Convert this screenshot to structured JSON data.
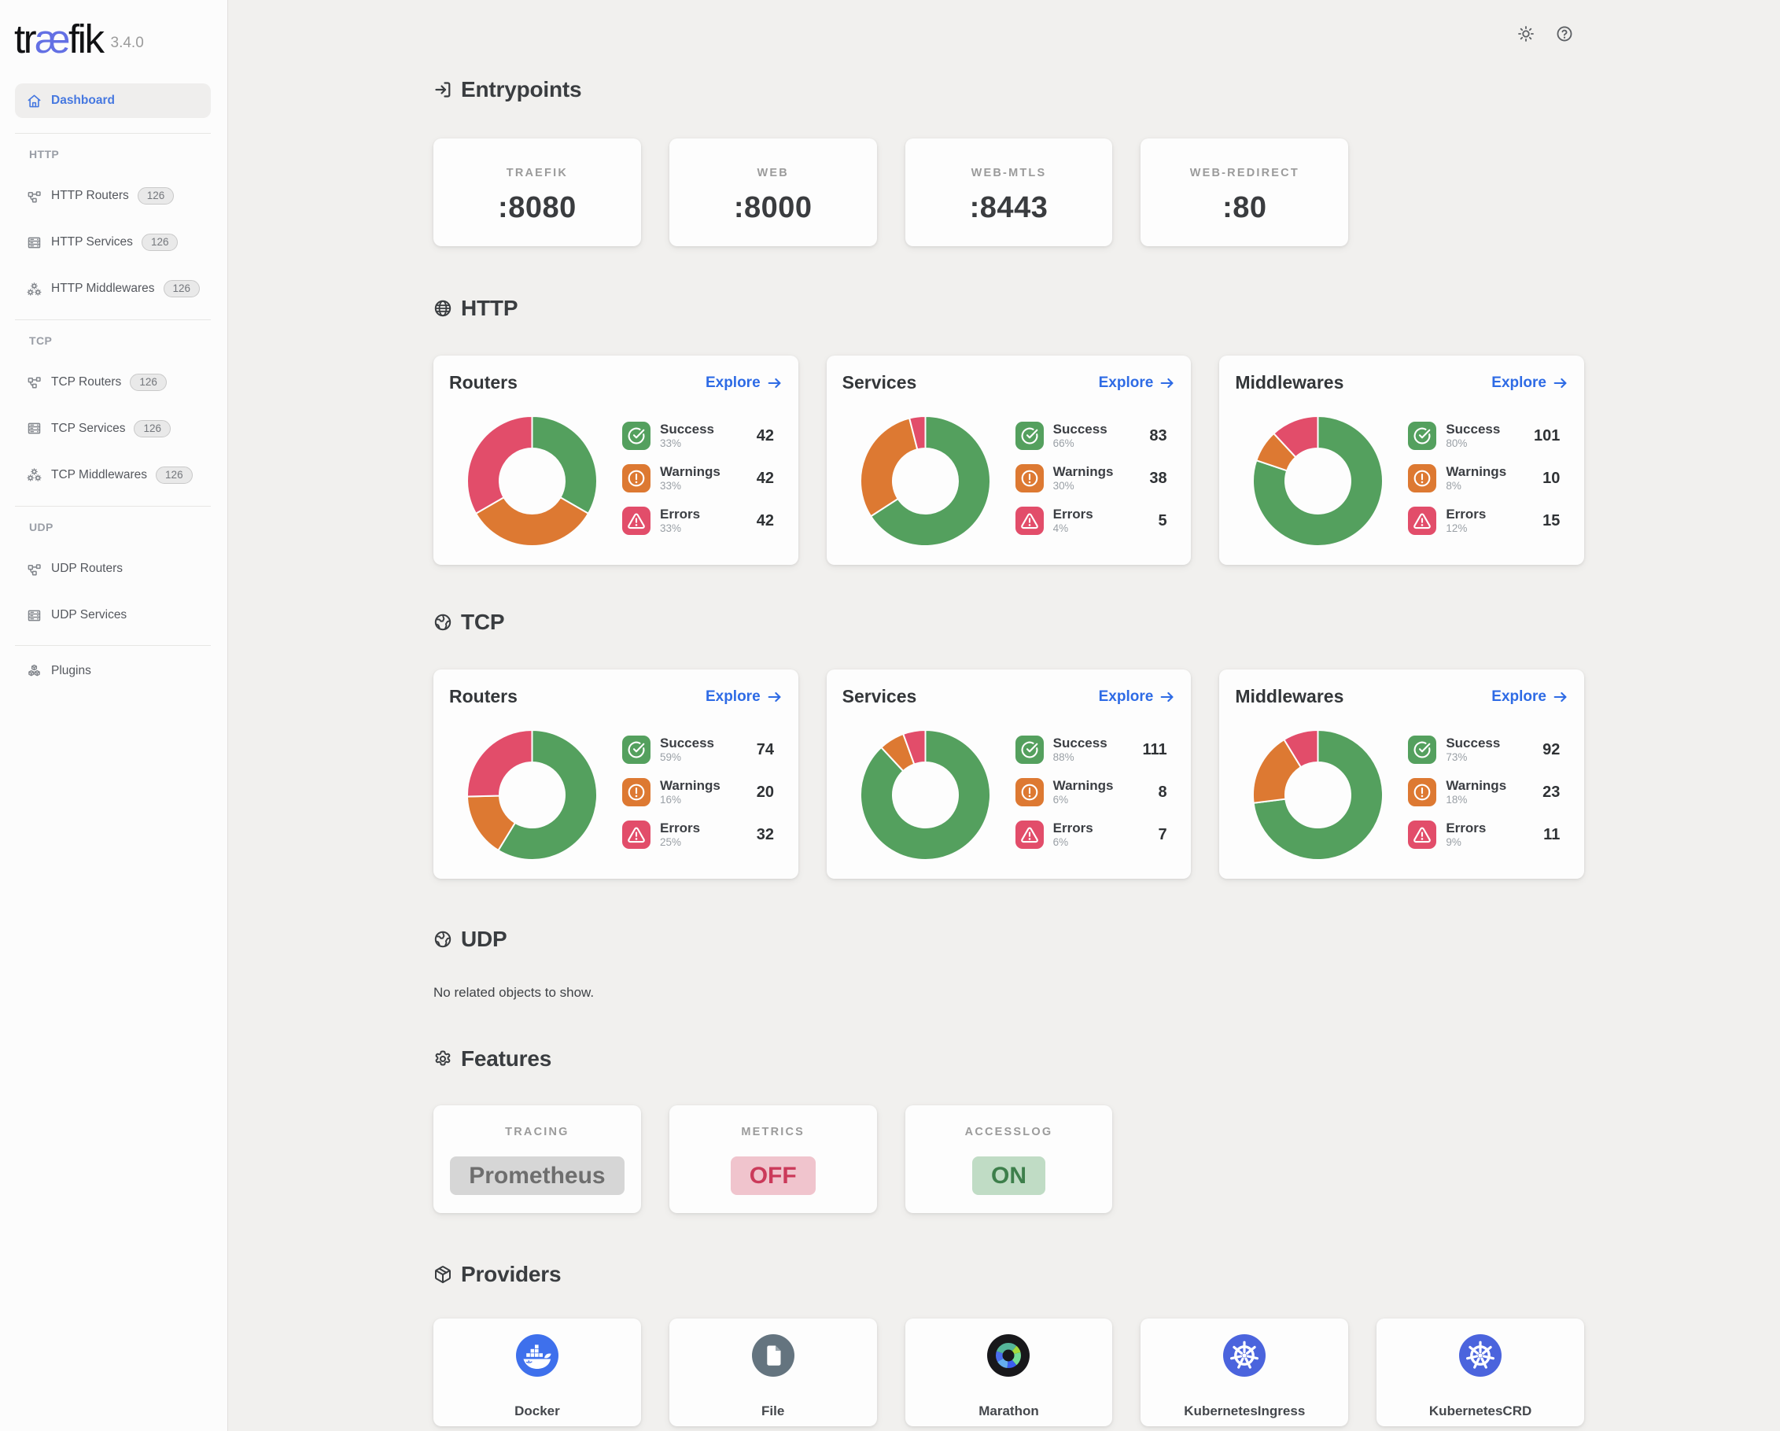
{
  "app": {
    "logo_pre": "tr",
    "logo_ae": "æ",
    "logo_post": "fik",
    "version": "3.4.0"
  },
  "topbar": {
    "icons": [
      {
        "name": "theme-toggle",
        "icon": "sun"
      },
      {
        "name": "help",
        "icon": "help"
      }
    ]
  },
  "sidebar": {
    "sections": [
      {
        "header": null,
        "items": [
          {
            "icon": "home",
            "label": "Dashboard",
            "badge": null,
            "active": true
          }
        ]
      },
      {
        "header": "HTTP",
        "items": [
          {
            "icon": "router",
            "label": "HTTP Routers",
            "badge": "126"
          },
          {
            "icon": "server",
            "label": "HTTP Services",
            "badge": "126"
          },
          {
            "icon": "middleware",
            "label": "HTTP Middlewares",
            "badge": "126"
          }
        ]
      },
      {
        "header": "TCP",
        "items": [
          {
            "icon": "router",
            "label": "TCP Routers",
            "badge": "126"
          },
          {
            "icon": "server",
            "label": "TCP Services",
            "badge": "126"
          },
          {
            "icon": "middleware",
            "label": "TCP Middlewares",
            "badge": "126"
          }
        ]
      },
      {
        "header": "UDP",
        "items": [
          {
            "icon": "router",
            "label": "UDP Routers",
            "badge": null
          },
          {
            "icon": "server",
            "label": "UDP Services",
            "badge": null
          }
        ]
      },
      {
        "header": null,
        "items": [
          {
            "icon": "plugins",
            "label": "Plugins",
            "badge": null
          }
        ]
      }
    ]
  },
  "main": {
    "entrypoints": {
      "title": "Entrypoints",
      "icon": "login",
      "cards": [
        {
          "label": "TRAEFIK",
          "value": ":8080"
        },
        {
          "label": "WEB",
          "value": ":8000"
        },
        {
          "label": "WEB-MTLS",
          "value": ":8443"
        },
        {
          "label": "WEB-REDIRECT",
          "value": ":80"
        }
      ]
    },
    "http": {
      "title": "HTTP",
      "icon": "globe",
      "cards": [
        {
          "title": "Routers",
          "explore": "Explore",
          "stats": [
            {
              "kind": "success",
              "label": "Success",
              "pct": "33%",
              "count": 42,
              "value": "42"
            },
            {
              "kind": "warning",
              "label": "Warnings",
              "pct": "33%",
              "count": 42,
              "value": "42"
            },
            {
              "kind": "error",
              "label": "Errors",
              "pct": "33%",
              "count": 42,
              "value": "42"
            }
          ]
        },
        {
          "title": "Services",
          "explore": "Explore",
          "stats": [
            {
              "kind": "success",
              "label": "Success",
              "pct": "66%",
              "count": 83,
              "value": "83"
            },
            {
              "kind": "warning",
              "label": "Warnings",
              "pct": "30%",
              "count": 38,
              "value": "38"
            },
            {
              "kind": "error",
              "label": "Errors",
              "pct": "4%",
              "count": 5,
              "value": "5"
            }
          ]
        },
        {
          "title": "Middlewares",
          "explore": "Explore",
          "stats": [
            {
              "kind": "success",
              "label": "Success",
              "pct": "80%",
              "count": 101,
              "value": "101"
            },
            {
              "kind": "warning",
              "label": "Warnings",
              "pct": "8%",
              "count": 10,
              "value": "10"
            },
            {
              "kind": "error",
              "label": "Errors",
              "pct": "12%",
              "count": 15,
              "value": "15"
            }
          ]
        }
      ]
    },
    "tcp": {
      "title": "TCP",
      "icon": "earth",
      "cards": [
        {
          "title": "Routers",
          "explore": "Explore",
          "stats": [
            {
              "kind": "success",
              "label": "Success",
              "pct": "59%",
              "count": 74,
              "value": "74"
            },
            {
              "kind": "warning",
              "label": "Warnings",
              "pct": "16%",
              "count": 20,
              "value": "20"
            },
            {
              "kind": "error",
              "label": "Errors",
              "pct": "25%",
              "count": 32,
              "value": "32"
            }
          ]
        },
        {
          "title": "Services",
          "explore": "Explore",
          "stats": [
            {
              "kind": "success",
              "label": "Success",
              "pct": "88%",
              "count": 111,
              "value": "111"
            },
            {
              "kind": "warning",
              "label": "Warnings",
              "pct": "6%",
              "count": 8,
              "value": "8"
            },
            {
              "kind": "error",
              "label": "Errors",
              "pct": "6%",
              "count": 7,
              "value": "7"
            }
          ]
        },
        {
          "title": "Middlewares",
          "explore": "Explore",
          "stats": [
            {
              "kind": "success",
              "label": "Success",
              "pct": "73%",
              "count": 92,
              "value": "92"
            },
            {
              "kind": "warning",
              "label": "Warnings",
              "pct": "18%",
              "count": 23,
              "value": "23"
            },
            {
              "kind": "error",
              "label": "Errors",
              "pct": "9%",
              "count": 11,
              "value": "11"
            }
          ]
        }
      ]
    },
    "udp": {
      "title": "UDP",
      "icon": "earth",
      "empty": "No related objects to show."
    },
    "features": {
      "title": "Features",
      "icon": "gear",
      "cards": [
        {
          "label": "TRACING",
          "value": "Prometheus",
          "state": "neutral"
        },
        {
          "label": "METRICS",
          "value": "OFF",
          "state": "off"
        },
        {
          "label": "ACCESSLOG",
          "value": "ON",
          "state": "on"
        }
      ]
    },
    "providers": {
      "title": "Providers",
      "icon": "package",
      "cards": [
        {
          "label": "Docker",
          "icon": "docker"
        },
        {
          "label": "File",
          "icon": "file"
        },
        {
          "label": "Marathon",
          "icon": "marathon"
        },
        {
          "label": "KubernetesIngress",
          "icon": "kubernetes"
        },
        {
          "label": "KubernetesCRD",
          "icon": "kubernetes"
        }
      ]
    }
  },
  "colors": {
    "success": "#54a05e",
    "warning": "#dd7932",
    "error": "#e24d6a",
    "accent": "#2e6be5",
    "logo_ae": "#6370e4"
  },
  "chart_data": [
    {
      "type": "donut",
      "title": "HTTP Routers",
      "labels": [
        "Success",
        "Warnings",
        "Errors"
      ],
      "values": [
        42,
        42,
        42
      ],
      "pcts": [
        33,
        33,
        33
      ]
    },
    {
      "type": "donut",
      "title": "HTTP Services",
      "labels": [
        "Success",
        "Warnings",
        "Errors"
      ],
      "values": [
        83,
        38,
        5
      ],
      "pcts": [
        66,
        30,
        4
      ]
    },
    {
      "type": "donut",
      "title": "HTTP Middlewares",
      "labels": [
        "Success",
        "Warnings",
        "Errors"
      ],
      "values": [
        101,
        10,
        15
      ],
      "pcts": [
        80,
        8,
        12
      ]
    },
    {
      "type": "donut",
      "title": "TCP Routers",
      "labels": [
        "Success",
        "Warnings",
        "Errors"
      ],
      "values": [
        74,
        20,
        32
      ],
      "pcts": [
        59,
        16,
        25
      ]
    },
    {
      "type": "donut",
      "title": "TCP Services",
      "labels": [
        "Success",
        "Warnings",
        "Errors"
      ],
      "values": [
        111,
        8,
        7
      ],
      "pcts": [
        88,
        6,
        6
      ]
    },
    {
      "type": "donut",
      "title": "TCP Middlewares",
      "labels": [
        "Success",
        "Warnings",
        "Errors"
      ],
      "values": [
        92,
        23,
        11
      ],
      "pcts": [
        73,
        18,
        9
      ]
    }
  ]
}
